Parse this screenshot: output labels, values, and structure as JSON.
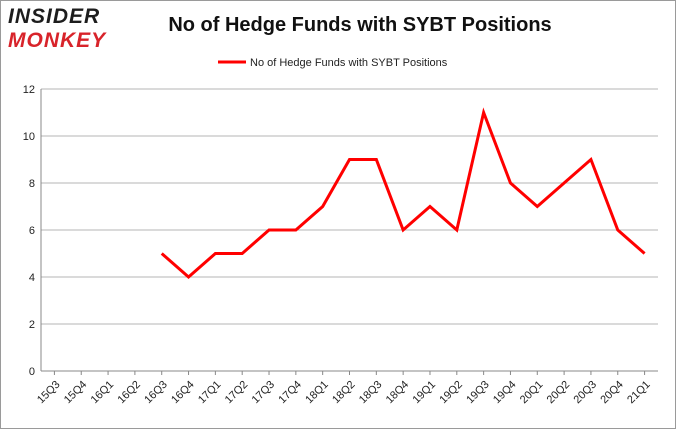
{
  "logo": {
    "top_text": "INSIDER",
    "bottom_text": "MONKEY"
  },
  "chart_data": {
    "type": "line",
    "title": "No of Hedge Funds with SYBT Positions",
    "xlabel": "",
    "ylabel": "",
    "categories": [
      "15Q3",
      "15Q4",
      "16Q1",
      "16Q2",
      "16Q3",
      "16Q4",
      "17Q1",
      "17Q2",
      "17Q3",
      "17Q4",
      "18Q1",
      "18Q2",
      "18Q3",
      "18Q4",
      "19Q1",
      "19Q2",
      "19Q3",
      "19Q4",
      "20Q1",
      "20Q2",
      "20Q3",
      "20Q4",
      "21Q1"
    ],
    "series": [
      {
        "name": "No of Hedge Funds with SYBT Positions",
        "color": "#ff0000",
        "values": [
          null,
          null,
          null,
          null,
          5,
          4,
          5,
          5,
          6,
          6,
          7,
          9,
          9,
          6,
          7,
          6,
          11,
          8,
          7,
          8,
          9,
          6,
          5
        ]
      }
    ],
    "ylim": [
      0,
      12
    ],
    "yticks": [
      "0",
      "2",
      "4",
      "6",
      "8",
      "10",
      "12"
    ],
    "grid": true,
    "legend_position": "top-center"
  }
}
